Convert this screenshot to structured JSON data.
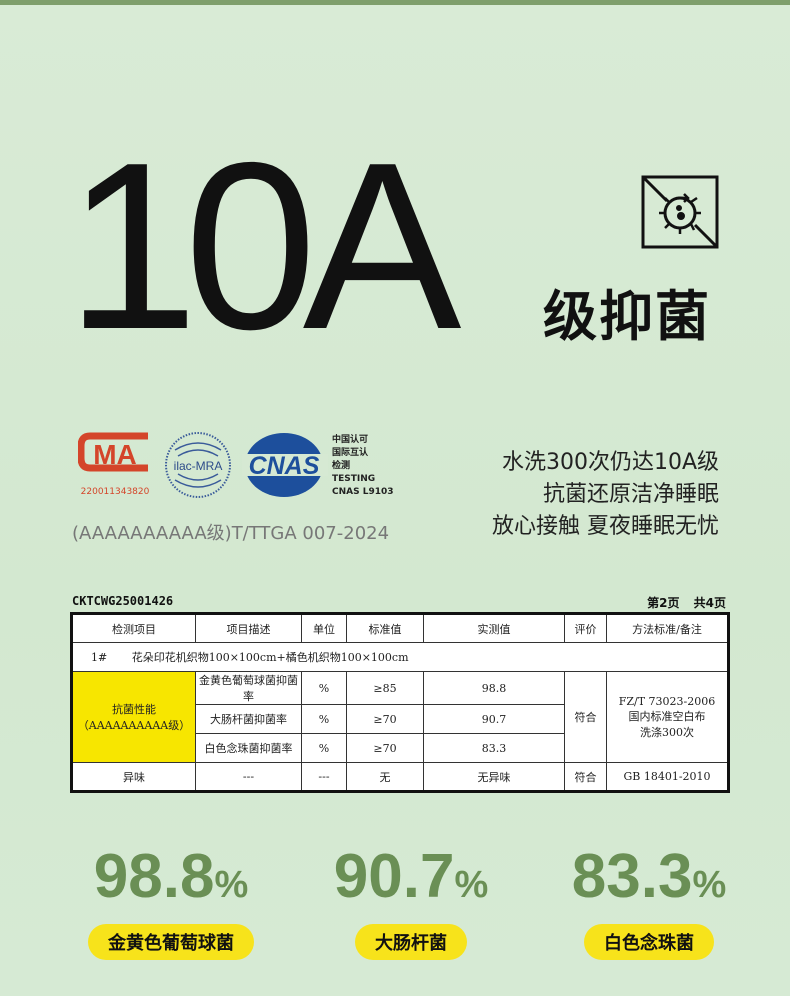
{
  "hero": {
    "grade": "10A",
    "title": "级抑菌",
    "icon": "antibacterial-icon"
  },
  "logos": {
    "cma_text": "MA",
    "cma_number": "22001134382​0",
    "ilac": "ilac-MRA",
    "cnas": "CNAS",
    "cnas_lines": [
      "中国认可",
      "国际互认",
      "检测",
      "TESTING",
      "CNAS L9103"
    ]
  },
  "standard": "(AAAAAAAAAA级)T/TTGA 007-2024",
  "slogan": [
    "水洗300次仍达10A级",
    "抗菌还原洁净睡眠",
    "放心接触 夏夜睡眠无忧"
  ],
  "report": {
    "code": "CKTCWG25001426",
    "page": "第2页",
    "total": "共4页",
    "headers": [
      "检测项目",
      "项目描述",
      "单位",
      "标准值",
      "实测值",
      "评价",
      "方法标准/备注"
    ],
    "sample": {
      "id": "1#",
      "desc": "花朵印花机织物100×100cm+橘色机织物100×100cm"
    },
    "group": {
      "name": "抗菌性能",
      "grade": "（AAAAAAAAAA级）",
      "result": "符合",
      "method": [
        "FZ/T 73023-2006",
        "国内标准空白布",
        "洗涤300次"
      ]
    },
    "rows": [
      {
        "desc": "金黄色葡萄球菌抑菌率",
        "unit": "%",
        "std": "≥85",
        "val": "98.8"
      },
      {
        "desc": "大肠杆菌抑菌率",
        "unit": "%",
        "std": "≥70",
        "val": "90.7"
      },
      {
        "desc": "白色念珠菌抑菌率",
        "unit": "%",
        "std": "≥70",
        "val": "83.3"
      }
    ],
    "odor": {
      "item": "异味",
      "desc": "---",
      "unit": "---",
      "std": "无",
      "val": "无异味",
      "result": "符合",
      "method": "GB 18401-2010"
    }
  },
  "stats": [
    {
      "value": "98.8",
      "unit": "%",
      "label": "金黄色葡萄球菌"
    },
    {
      "value": "90.7",
      "unit": "%",
      "label": "大肠杆菌"
    },
    {
      "value": "83.3",
      "unit": "%",
      "label": "白色念珠菌"
    }
  ],
  "colors": {
    "accent": "#6a8f55",
    "highlight": "#f7e31b",
    "cma": "#d4452a",
    "cnas": "#1d4f9c"
  }
}
